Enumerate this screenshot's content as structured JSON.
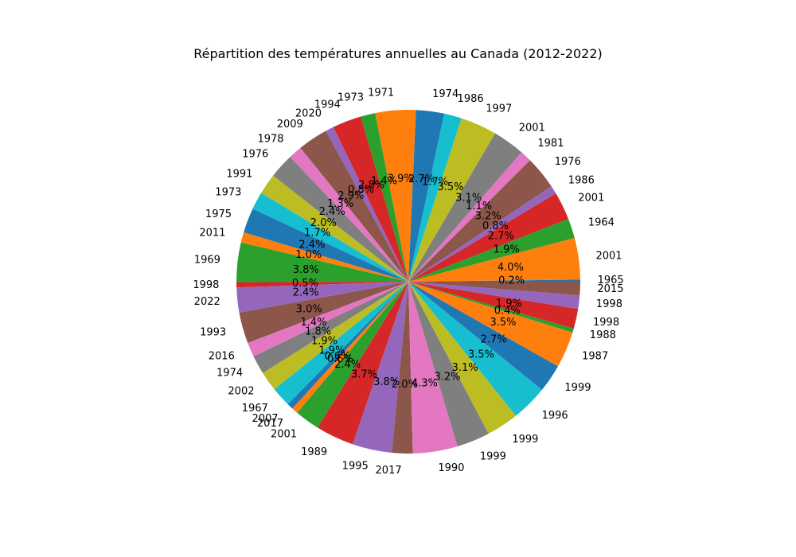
{
  "chart_data": {
    "type": "pie",
    "title": "Répartition des températures annuelles au Canada (2012-2022)",
    "start_angle_deg": 0,
    "direction": "counterclockwise",
    "colors": [
      "#1f77b4",
      "#ff7f0e",
      "#2ca02c",
      "#d62728",
      "#9467bd",
      "#8c564b",
      "#e377c2",
      "#7f7f7f",
      "#bcbd22",
      "#17becf"
    ],
    "slices": [
      {
        "label": "1965",
        "percent_label": "0.2%",
        "value": 0.2
      },
      {
        "label": "2001",
        "percent_label": "4.0%",
        "value": 4.0
      },
      {
        "label": "1964",
        "percent_label": "1.9%",
        "value": 1.9
      },
      {
        "label": "2001",
        "percent_label": "2.7%",
        "value": 2.7
      },
      {
        "label": "1986",
        "percent_label": "0.8%",
        "value": 0.8
      },
      {
        "label": "1976",
        "percent_label": "3.2%",
        "value": 3.2
      },
      {
        "label": "1981",
        "percent_label": "1.1%",
        "value": 1.1
      },
      {
        "label": "2001",
        "percent_label": "3.1%",
        "value": 3.1
      },
      {
        "label": "1997",
        "percent_label": "3.5%",
        "value": 3.5
      },
      {
        "label": "1986",
        "percent_label": "1.7%",
        "value": 1.7
      },
      {
        "label": "1974",
        "percent_label": "2.7%",
        "value": 2.7
      },
      {
        "label": "1971",
        "percent_label": "3.9%",
        "value": 3.9
      },
      {
        "label": "1973",
        "percent_label": "1.4%",
        "value": 1.4
      },
      {
        "label": "1994",
        "percent_label": "2.8%",
        "value": 2.8
      },
      {
        "label": "2020",
        "percent_label": "0.8%",
        "value": 0.8
      },
      {
        "label": "2009",
        "percent_label": "2.9%",
        "value": 2.9
      },
      {
        "label": "1978",
        "percent_label": "1.3%",
        "value": 1.3
      },
      {
        "label": "1976",
        "percent_label": "2.4%",
        "value": 2.4
      },
      {
        "label": "1991",
        "percent_label": "2.0%",
        "value": 2.0
      },
      {
        "label": "1973",
        "percent_label": "1.7%",
        "value": 1.7
      },
      {
        "label": "1975",
        "percent_label": "2.4%",
        "value": 2.4
      },
      {
        "label": "2011",
        "percent_label": "1.0%",
        "value": 1.0
      },
      {
        "label": "1969",
        "percent_label": "3.8%",
        "value": 3.8
      },
      {
        "label": "1998",
        "percent_label": "0.5%",
        "value": 0.5
      },
      {
        "label": "2022",
        "percent_label": "2.4%",
        "value": 2.4
      },
      {
        "label": "1993",
        "percent_label": "3.0%",
        "value": 3.0
      },
      {
        "label": "2016",
        "percent_label": "1.4%",
        "value": 1.4
      },
      {
        "label": "1974",
        "percent_label": "1.8%",
        "value": 1.8
      },
      {
        "label": "2002",
        "percent_label": "1.9%",
        "value": 1.9
      },
      {
        "label": "1967",
        "percent_label": "1.9%",
        "value": 1.9
      },
      {
        "label": "2007",
        "percent_label": "0.6%",
        "value": 0.6
      },
      {
        "label": "2017",
        "percent_label": "0.6%",
        "value": 0.6
      },
      {
        "label": "2001",
        "percent_label": "2.4%",
        "value": 2.4
      },
      {
        "label": "1989",
        "percent_label": "3.7%",
        "value": 3.7
      },
      {
        "label": "1995",
        "percent_label": "3.8%",
        "value": 3.8
      },
      {
        "label": "2017",
        "percent_label": "2.0%",
        "value": 2.0
      },
      {
        "label": "1990",
        "percent_label": "4.3%",
        "value": 4.3
      },
      {
        "label": "1999",
        "percent_label": "3.2%",
        "value": 3.2
      },
      {
        "label": "1999",
        "percent_label": "3.1%",
        "value": 3.1
      },
      {
        "label": "1996",
        "percent_label": "3.5%",
        "value": 3.5
      },
      {
        "label": "1999",
        "percent_label": "2.7%",
        "value": 2.7
      },
      {
        "label": "1987",
        "percent_label": "3.5%",
        "value": 3.5
      },
      {
        "label": "1988",
        "percent_label": "0.4%",
        "value": 0.4
      },
      {
        "label": "1998",
        "percent_label": "1.9%",
        "value": 1.9
      },
      {
        "label": "1998",
        "percent_label": "",
        "value": 1.3
      },
      {
        "label": "2015",
        "percent_label": "",
        "value": 1.3
      }
    ]
  }
}
